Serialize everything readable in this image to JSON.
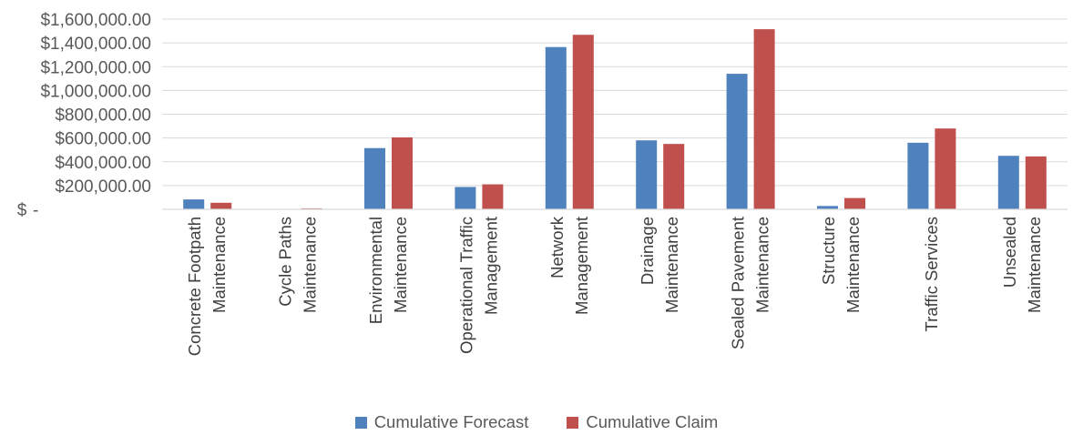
{
  "chart_data": {
    "type": "bar",
    "categories": [
      [
        "Concrete Footpath",
        "Maintenance"
      ],
      [
        "Cycle Paths",
        "Maintenance"
      ],
      [
        "Environmental",
        "Maintenance"
      ],
      [
        "Operational Traffic",
        "Management"
      ],
      [
        "Network",
        "Management"
      ],
      [
        "Drainage",
        "Maintenance"
      ],
      [
        "Sealed Pavement",
        "Maintenance"
      ],
      [
        "Structure",
        "Maintenance"
      ],
      [
        "Traffic Services"
      ],
      [
        "Unsealed",
        "Maintenance"
      ]
    ],
    "series": [
      {
        "name": "Cumulative Forecast",
        "color": "#4F81BD",
        "values": [
          83000,
          0,
          515000,
          188000,
          1365000,
          580000,
          1140000,
          28000,
          560000,
          450000
        ]
      },
      {
        "name": "Cumulative Claim",
        "color": "#C0504D",
        "values": [
          55000,
          8000,
          605000,
          210000,
          1468000,
          550000,
          1515000,
          95000,
          680000,
          445000
        ]
      }
    ],
    "ylim": [
      0,
      1600000
    ],
    "yticks": [
      0,
      200000,
      400000,
      600000,
      800000,
      1000000,
      1200000,
      1400000,
      1600000
    ],
    "ytick_labels": [
      "$-",
      "$200,000.00",
      "$400,000.00",
      "$600,000.00",
      "$800,000.00",
      "$1,000,000.00",
      "$1,200,000.00",
      "$1,400,000.00",
      "$1,600,000.00"
    ],
    "grid": true,
    "legend_position": "bottom"
  }
}
